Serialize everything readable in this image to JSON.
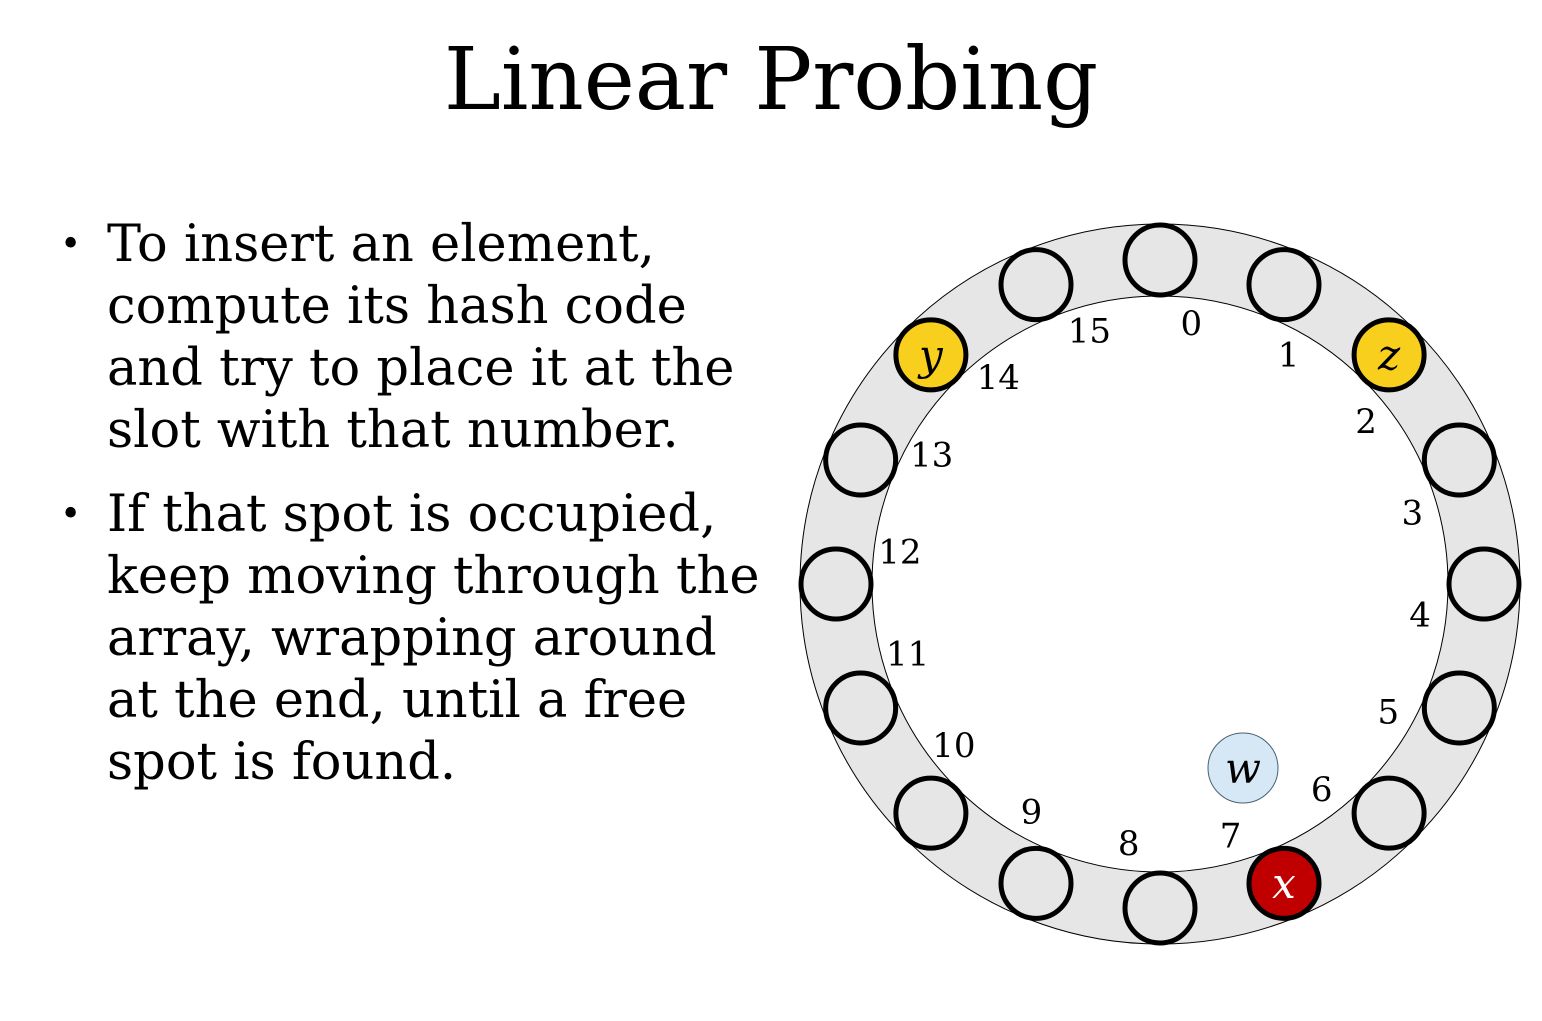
{
  "slide": {
    "title": "Linear Probing",
    "bullets": [
      "To insert an element, compute its hash code and try to place it at the slot with that number.",
      "If that spot is occupied, keep moving through the array, wrapping around at the end, until a free spot is found."
    ],
    "bullet_symbol": "•"
  },
  "diagram": {
    "slot_count": 16,
    "slots": [
      {
        "index": "0",
        "value": ""
      },
      {
        "index": "1",
        "value": ""
      },
      {
        "index": "2",
        "value": "z",
        "fill": "#f9cf1e"
      },
      {
        "index": "3",
        "value": ""
      },
      {
        "index": "4",
        "value": ""
      },
      {
        "index": "5",
        "value": ""
      },
      {
        "index": "6",
        "value": ""
      },
      {
        "index": "7",
        "value": "x",
        "fill": "#c00000"
      },
      {
        "index": "8",
        "value": ""
      },
      {
        "index": "9",
        "value": ""
      },
      {
        "index": "10",
        "value": ""
      },
      {
        "index": "11",
        "value": ""
      },
      {
        "index": "12",
        "value": ""
      },
      {
        "index": "13",
        "value": ""
      },
      {
        "index": "14",
        "value": "y",
        "fill": "#f9cf1e"
      },
      {
        "index": "15",
        "value": ""
      }
    ],
    "pending_element": {
      "value": "w",
      "fill": "#d6e8f5"
    },
    "colors": {
      "ring_fill": "#e6e6e6",
      "empty_slot_fill": "#e6e6e6",
      "slot_stroke": "#000000",
      "occupied_yellow": "#f9cf1e",
      "occupied_red": "#c00000",
      "pending_fill": "#d6e8f5",
      "pending_stroke": "#4a6070"
    }
  }
}
